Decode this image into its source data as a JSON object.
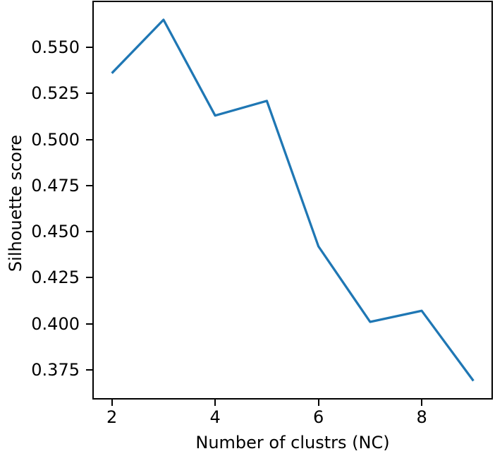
{
  "chart_data": {
    "type": "line",
    "title": "",
    "xlabel": "Number of clustrs (NC)",
    "ylabel": "Silhouette score",
    "x": [
      2,
      3,
      4,
      5,
      6,
      7,
      8,
      9
    ],
    "y": [
      0.536,
      0.565,
      0.513,
      0.521,
      0.442,
      0.401,
      0.407,
      0.369
    ],
    "xlim": [
      1.65,
      9.35
    ],
    "ylim": [
      0.3596,
      0.5746
    ],
    "x_tick_values": [
      2,
      4,
      6,
      8
    ],
    "x_tick_labels": [
      "2",
      "4",
      "6",
      "8"
    ],
    "y_tick_values": [
      0.375,
      0.4,
      0.425,
      0.45,
      0.475,
      0.5,
      0.525,
      0.55
    ],
    "y_tick_labels": [
      "0.375",
      "0.400",
      "0.425",
      "0.450",
      "0.475",
      "0.500",
      "0.525",
      "0.550"
    ],
    "grid": false,
    "legend_position": "none",
    "line_color": "#1f77b4",
    "line_width": 3.3,
    "axis_color": "#000000",
    "background_color": "#ffffff"
  }
}
